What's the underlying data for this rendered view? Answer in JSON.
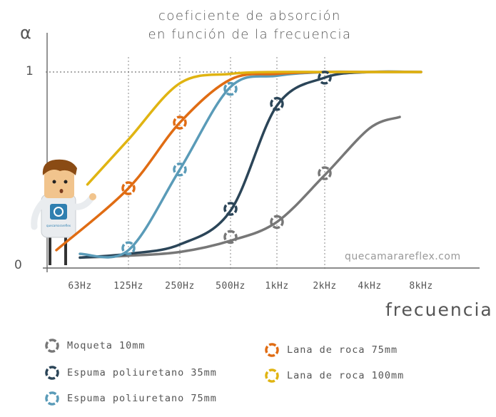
{
  "title_lines": [
    "coeficiente de absorción",
    "en función de la frecuencia"
  ],
  "watermark": "quecamarareflex.com",
  "mascot_shirt_text": "quecamarareflex",
  "chart_data": {
    "type": "line",
    "ylabel": "α",
    "xlabel": "frecuencia",
    "y_ticks": [
      "0",
      "1"
    ],
    "ylim": [
      0,
      1
    ],
    "categories": [
      "63Hz",
      "125Hz",
      "250Hz",
      "500Hz",
      "1kHz",
      "2kHz",
      "4kHz",
      "8kHz"
    ],
    "grid": "dotted vertical lines at 125Hz, 250Hz, 500Hz, 1kHz, 2kHz; dotted horizontal line at 1",
    "legend_position": "bottom",
    "series": [
      {
        "name": "Moqueta 10mm",
        "color": "#777777",
        "points": [
          [
            63,
            0.01
          ],
          [
            125,
            0.02
          ],
          [
            250,
            0.04
          ],
          [
            500,
            0.1
          ],
          [
            1000,
            0.2
          ],
          [
            2000,
            0.45
          ],
          [
            4000,
            0.7
          ],
          [
            6000,
            0.76
          ]
        ]
      },
      {
        "name": "Espuma poliuretano 35mm",
        "color": "#2b4558",
        "points": [
          [
            63,
            0.01
          ],
          [
            125,
            0.03
          ],
          [
            250,
            0.08
          ],
          [
            500,
            0.26
          ],
          [
            1000,
            0.82
          ],
          [
            2000,
            0.97
          ],
          [
            4000,
            1.0
          ],
          [
            8000,
            1.0
          ]
        ]
      },
      {
        "name": "Espuma poliuretano 75mm",
        "color": "#5a9bb8",
        "points": [
          [
            63,
            0.03
          ],
          [
            125,
            0.05
          ],
          [
            250,
            0.48
          ],
          [
            500,
            0.92
          ],
          [
            1000,
            0.98
          ],
          [
            2000,
            1.0
          ],
          [
            4000,
            1.0
          ],
          [
            8000,
            1.0
          ]
        ]
      },
      {
        "name": "Lana de roca 75mm",
        "color": "#e06c13",
        "points": [
          [
            45,
            0.05
          ],
          [
            125,
            0.38
          ],
          [
            250,
            0.73
          ],
          [
            500,
            0.96
          ],
          [
            1000,
            0.99
          ],
          [
            2000,
            1.0
          ],
          [
            4000,
            1.0
          ],
          [
            8000,
            1.0
          ]
        ]
      },
      {
        "name": "Lana de roca 100mm",
        "color": "#e0b412",
        "points": [
          [
            70,
            0.4
          ],
          [
            125,
            0.64
          ],
          [
            250,
            0.94
          ],
          [
            500,
            0.99
          ],
          [
            1000,
            1.0
          ],
          [
            2000,
            1.0
          ],
          [
            4000,
            1.0
          ],
          [
            8000,
            1.0
          ]
        ]
      }
    ],
    "markers": [
      {
        "series": 0,
        "x": 500,
        "y": 0.12
      },
      {
        "series": 0,
        "x": 1000,
        "y": 0.2
      },
      {
        "series": 0,
        "x": 2000,
        "y": 0.46
      },
      {
        "series": 1,
        "x": 500,
        "y": 0.27
      },
      {
        "series": 1,
        "x": 1000,
        "y": 0.83
      },
      {
        "series": 1,
        "x": 2000,
        "y": 0.97
      },
      {
        "series": 2,
        "x": 125,
        "y": 0.06
      },
      {
        "series": 2,
        "x": 250,
        "y": 0.48
      },
      {
        "series": 2,
        "x": 500,
        "y": 0.91
      },
      {
        "series": 3,
        "x": 125,
        "y": 0.38
      },
      {
        "series": 3,
        "x": 250,
        "y": 0.73
      }
    ]
  },
  "legend": [
    {
      "label": "Moqueta 10mm",
      "color": "#777777"
    },
    {
      "label": "Espuma poliuretano 35mm",
      "color": "#2b4558"
    },
    {
      "label": "Espuma poliuretano 75mm",
      "color": "#5a9bb8"
    },
    {
      "label": "Lana de roca 75mm",
      "color": "#e06c13"
    },
    {
      "label": "Lana de roca 100mm",
      "color": "#e0b412"
    }
  ]
}
